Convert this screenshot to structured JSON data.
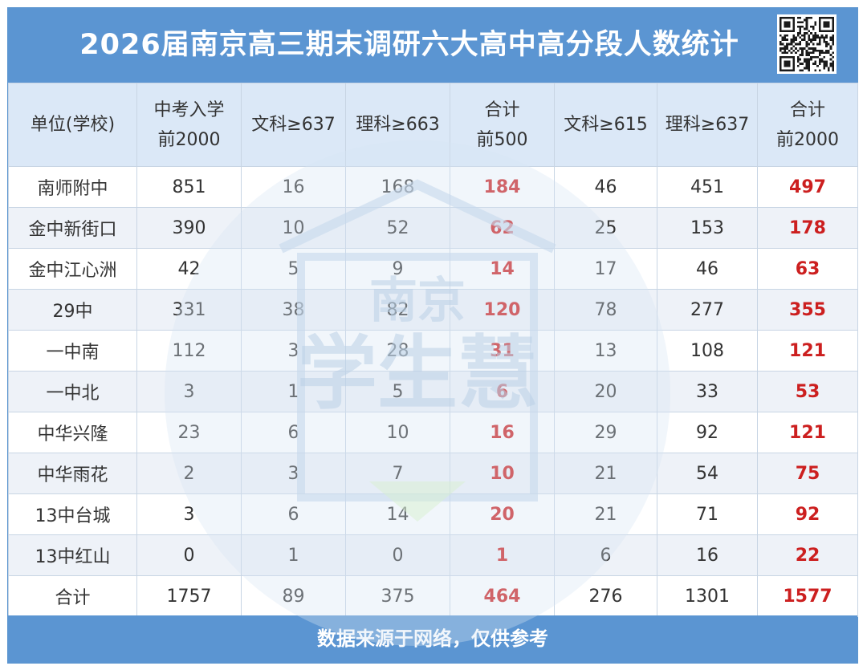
{
  "title": "2026届南京高三期末调研六大高中高分段人数统计",
  "footer": "数据来源于网络，仅供参考",
  "watermark": {
    "line1": "南京",
    "line2": "学生慧"
  },
  "colors": {
    "header_bg": "#5b95d2",
    "highlight": "#cc1f1f",
    "head_row_bg": "#dbe8f7"
  },
  "qr_icon": "qr-code-icon",
  "table": {
    "headers": [
      [
        "单位(学校)"
      ],
      [
        "中考入学",
        "前2000"
      ],
      [
        "文科≥637"
      ],
      [
        "理科≥663"
      ],
      [
        "合计",
        "前500"
      ],
      [
        "文科≥615"
      ],
      [
        "理科≥637"
      ],
      [
        "合计",
        "前2000"
      ]
    ],
    "rows": [
      [
        "南师附中",
        "851",
        "16",
        "168",
        "184",
        "46",
        "451",
        "497"
      ],
      [
        "金中新街口",
        "390",
        "10",
        "52",
        "62",
        "25",
        "153",
        "178"
      ],
      [
        "金中江心洲",
        "42",
        "5",
        "9",
        "14",
        "17",
        "46",
        "63"
      ],
      [
        "29中",
        "331",
        "38",
        "82",
        "120",
        "78",
        "277",
        "355"
      ],
      [
        "一中南",
        "112",
        "3",
        "28",
        "31",
        "13",
        "108",
        "121"
      ],
      [
        "一中北",
        "3",
        "1",
        "5",
        "6",
        "20",
        "33",
        "53"
      ],
      [
        "中华兴隆",
        "23",
        "6",
        "10",
        "16",
        "29",
        "92",
        "121"
      ],
      [
        "中华雨花",
        "2",
        "3",
        "7",
        "10",
        "21",
        "54",
        "75"
      ],
      [
        "13中台城",
        "3",
        "6",
        "14",
        "20",
        "21",
        "71",
        "92"
      ],
      [
        "13中红山",
        "0",
        "1",
        "0",
        "1",
        "6",
        "16",
        "22"
      ],
      [
        "合计",
        "1757",
        "89",
        "375",
        "464",
        "276",
        "1301",
        "1577"
      ]
    ]
  }
}
